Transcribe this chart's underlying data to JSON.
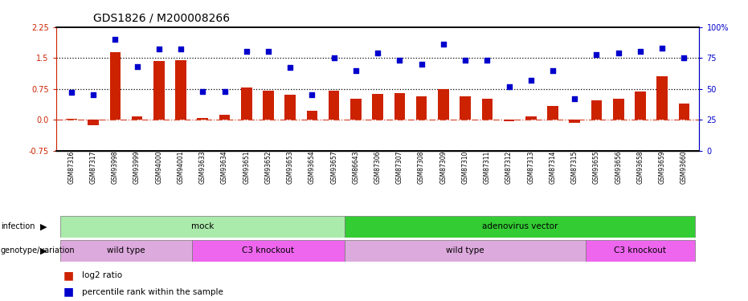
{
  "title": "GDS1826 / M200008266",
  "samples": [
    "GSM87316",
    "GSM87317",
    "GSM93998",
    "GSM93999",
    "GSM94000",
    "GSM94001",
    "GSM93633",
    "GSM93634",
    "GSM93651",
    "GSM93652",
    "GSM93653",
    "GSM93654",
    "GSM93657",
    "GSM86643",
    "GSM87306",
    "GSM87307",
    "GSM87308",
    "GSM87309",
    "GSM87310",
    "GSM87311",
    "GSM87312",
    "GSM87313",
    "GSM87314",
    "GSM87315",
    "GSM93655",
    "GSM93656",
    "GSM93658",
    "GSM93659",
    "GSM93660"
  ],
  "log2_ratio": [
    0.02,
    -0.13,
    1.65,
    0.07,
    1.42,
    1.45,
    0.04,
    0.12,
    0.78,
    0.7,
    0.6,
    0.22,
    0.7,
    0.5,
    0.62,
    0.65,
    0.57,
    0.75,
    0.57,
    0.5,
    -0.04,
    0.07,
    0.34,
    -0.07,
    0.47,
    0.5,
    0.68,
    1.05,
    0.4
  ],
  "percentile": [
    47,
    45,
    90,
    68,
    82,
    82,
    48,
    48,
    80,
    80,
    67,
    45,
    75,
    65,
    79,
    73,
    70,
    86,
    73,
    73,
    52,
    57,
    65,
    42,
    78,
    79,
    80,
    83,
    75
  ],
  "infection_groups": [
    {
      "label": "mock",
      "start": 0,
      "end": 13,
      "color": "#aaeaaa"
    },
    {
      "label": "adenovirus vector",
      "start": 13,
      "end": 29,
      "color": "#33cc33"
    }
  ],
  "genotype_groups": [
    {
      "label": "wild type",
      "start": 0,
      "end": 6,
      "color": "#ddaadd"
    },
    {
      "label": "C3 knockout",
      "start": 6,
      "end": 13,
      "color": "#ee66ee"
    },
    {
      "label": "wild type",
      "start": 13,
      "end": 24,
      "color": "#ddaadd"
    },
    {
      "label": "C3 knockout",
      "start": 24,
      "end": 29,
      "color": "#ee66ee"
    }
  ],
  "bar_color": "#cc2200",
  "dot_color": "#0000cc",
  "ylim_left": [
    -0.75,
    2.25
  ],
  "ylim_right": [
    0,
    100
  ],
  "yticks_left": [
    -0.75,
    0.0,
    0.75,
    1.5,
    2.25
  ],
  "yticks_right": [
    0,
    25,
    50,
    75,
    100
  ],
  "hlines_at": [
    0.75,
    1.5
  ],
  "zero_line": 0.0,
  "title_fontsize": 10,
  "bar_width": 0.5
}
